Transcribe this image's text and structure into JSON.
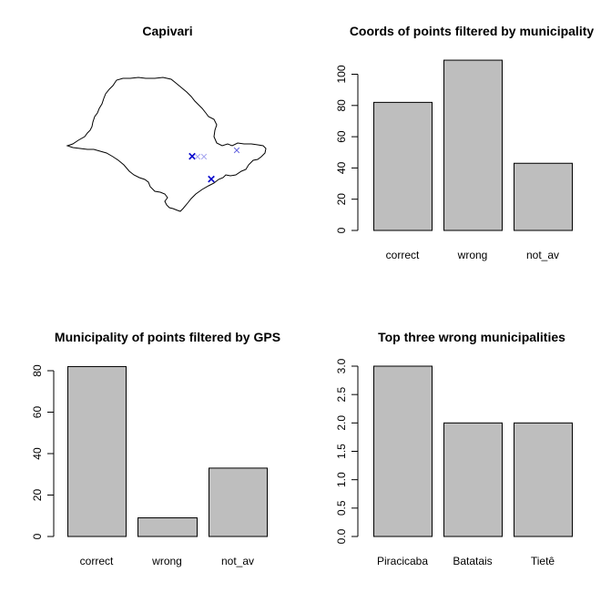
{
  "chart_data": [
    {
      "type": "map",
      "title": "Capivari",
      "markers": [
        {
          "symbol": "x",
          "color": "#0000cd",
          "weight": "bold"
        },
        {
          "symbol": "x",
          "color": "#0000cd",
          "weight": "bold"
        },
        {
          "symbol": "x",
          "color": "#6a6ae0",
          "weight": "normal"
        },
        {
          "symbol": "x",
          "color": "#a8a8f0",
          "weight": "light"
        },
        {
          "symbol": "x",
          "color": "#a8a8f0",
          "weight": "light"
        }
      ]
    },
    {
      "type": "bar",
      "title": "Coords of points filtered by municipality",
      "categories": [
        "correct",
        "wrong",
        "not_av"
      ],
      "values": [
        82,
        109,
        43
      ],
      "ylim": [
        0,
        100
      ],
      "yticks": [
        "0",
        "20",
        "40",
        "60",
        "80",
        "100"
      ],
      "ytick_values": [
        0,
        20,
        40,
        60,
        80,
        100
      ]
    },
    {
      "type": "bar",
      "title": "Municipality of points filtered by GPS",
      "categories": [
        "correct",
        "wrong",
        "not_av"
      ],
      "values": [
        82,
        9,
        33
      ],
      "ylim": [
        0,
        80
      ],
      "yticks": [
        "0",
        "20",
        "40",
        "60",
        "80"
      ],
      "ytick_values": [
        0,
        20,
        40,
        60,
        80
      ]
    },
    {
      "type": "bar",
      "title": "Top three wrong municipalities",
      "categories": [
        "Piracicaba",
        "Batatais",
        "Tietê"
      ],
      "values": [
        3,
        2,
        2
      ],
      "ylim": [
        0,
        3
      ],
      "yticks": [
        "0.0",
        "0.5",
        "1.0",
        "1.5",
        "2.0",
        "2.5",
        "3.0"
      ],
      "ytick_values": [
        0,
        0.5,
        1,
        1.5,
        2,
        2.5,
        3
      ]
    }
  ],
  "colors": {
    "bar_fill": "#bebebe",
    "bar_stroke": "#000000",
    "background": "#ffffff"
  }
}
